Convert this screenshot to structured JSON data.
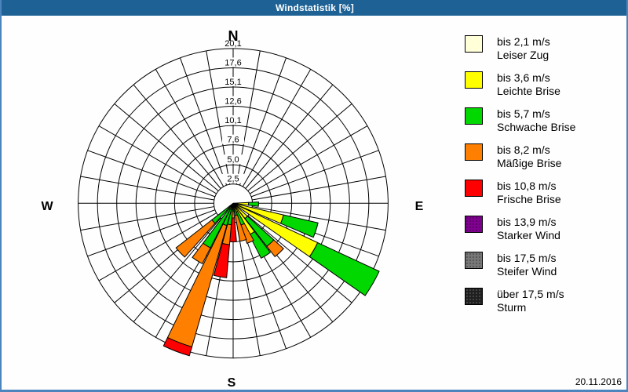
{
  "window": {
    "title": "Windstatistik [%]",
    "date": "20.11.2016"
  },
  "chart_data": {
    "type": "windrose",
    "unit": "%",
    "title": "Windstatistik [%]",
    "compass": {
      "n": "N",
      "e": "E",
      "s": "S",
      "w": "W"
    },
    "ring_values": [
      2.5,
      5.0,
      7.6,
      10.1,
      12.6,
      15.1,
      17.6,
      20.1
    ],
    "ring_labels": [
      "2,5",
      "5,0",
      "7,6",
      "10,1",
      "12,6",
      "15,1",
      "17,6",
      "20,1"
    ],
    "sector_count": 36,
    "sector_width_deg": 10,
    "axis_max": 20.1,
    "classes": {
      "cream": "#FFFFD8",
      "yellow": "#FFFF00",
      "green": "#00D800",
      "orange": "#FF8000",
      "red": "#FF0000",
      "purple": "#800090",
      "gray": "#777777",
      "black": "#1F1F1F"
    },
    "petals": [
      {
        "dir": 92,
        "stack": [
          {
            "class": "yellow",
            "cum": 2.0
          },
          {
            "class": "green",
            "cum": 3.3
          }
        ]
      },
      {
        "dir": 108,
        "stack": [
          {
            "class": "yellow",
            "cum": 6.7
          },
          {
            "class": "green",
            "cum": 11.3
          }
        ]
      },
      {
        "dir": 120,
        "stack": [
          {
            "class": "yellow",
            "cum": 12.1
          },
          {
            "class": "green",
            "cum": 20.9
          }
        ]
      },
      {
        "dir": 137,
        "stack": [
          {
            "class": "yellow",
            "cum": 2.5
          },
          {
            "class": "green",
            "cum": 7.1
          },
          {
            "class": "orange",
            "cum": 8.8
          }
        ]
      },
      {
        "dir": 148,
        "stack": [
          {
            "class": "yellow",
            "cum": 4.6
          },
          {
            "class": "green",
            "cum": 8.0
          }
        ]
      },
      {
        "dir": 156,
        "stack": [
          {
            "class": "yellow",
            "cum": 1.2
          },
          {
            "class": "green",
            "cum": 3.0
          },
          {
            "class": "orange",
            "cum": 5.5
          }
        ]
      },
      {
        "dir": 165,
        "stack": [
          {
            "class": "yellow",
            "cum": 0.8
          },
          {
            "class": "green",
            "cum": 1.6
          },
          {
            "class": "orange",
            "cum": 5.0
          }
        ]
      },
      {
        "dir": 180,
        "stack": [
          {
            "class": "yellow",
            "cum": 0.6
          },
          {
            "class": "green",
            "cum": 1.0
          },
          {
            "class": "orange",
            "cum": 1.9
          },
          {
            "class": "red",
            "cum": 5.0
          }
        ]
      },
      {
        "dir": 190,
        "stack": [
          {
            "class": "yellow",
            "cum": 0.8
          },
          {
            "class": "green",
            "cum": 2.8
          },
          {
            "class": "orange",
            "cum": 5.4
          },
          {
            "class": "red",
            "cum": 9.7
          }
        ]
      },
      {
        "dir": 201,
        "stack": [
          {
            "class": "yellow",
            "cum": 0.8
          },
          {
            "class": "green",
            "cum": 3.0
          },
          {
            "class": "orange",
            "cum": 19.4
          },
          {
            "class": "red",
            "cum": 20.6
          }
        ]
      },
      {
        "dir": 212,
        "stack": [
          {
            "class": "yellow",
            "cum": 0.9
          },
          {
            "class": "green",
            "cum": 6.5
          },
          {
            "class": "orange",
            "cum": 8.8
          }
        ]
      },
      {
        "dir": 227,
        "stack": [
          {
            "class": "yellow",
            "cum": 0.6
          },
          {
            "class": "green",
            "cum": 3.5
          },
          {
            "class": "orange",
            "cum": 9.4
          }
        ]
      }
    ]
  },
  "legend": [
    {
      "speed": "bis 2,1 m/s",
      "name": "Leiser Zug",
      "class": "cream",
      "pattern": false
    },
    {
      "speed": "bis 3,6 m/s",
      "name": "Leichte Brise",
      "class": "yellow",
      "pattern": false
    },
    {
      "speed": "bis 5,7 m/s",
      "name": "Schwache Brise",
      "class": "green",
      "pattern": false
    },
    {
      "speed": "bis 8,2 m/s",
      "name": "Mäßige Brise",
      "class": "orange",
      "pattern": false
    },
    {
      "speed": "bis 10,8 m/s",
      "name": "Frische Brise",
      "class": "red",
      "pattern": false
    },
    {
      "speed": "bis 13,9 m/s",
      "name": "Starker Wind",
      "class": "purple",
      "pattern": true
    },
    {
      "speed": "bis 17,5 m/s",
      "name": "Steifer Wind",
      "class": "gray",
      "pattern": true
    },
    {
      "speed": "über 17,5 m/s",
      "name": "Sturm",
      "class": "black",
      "pattern": true
    }
  ]
}
